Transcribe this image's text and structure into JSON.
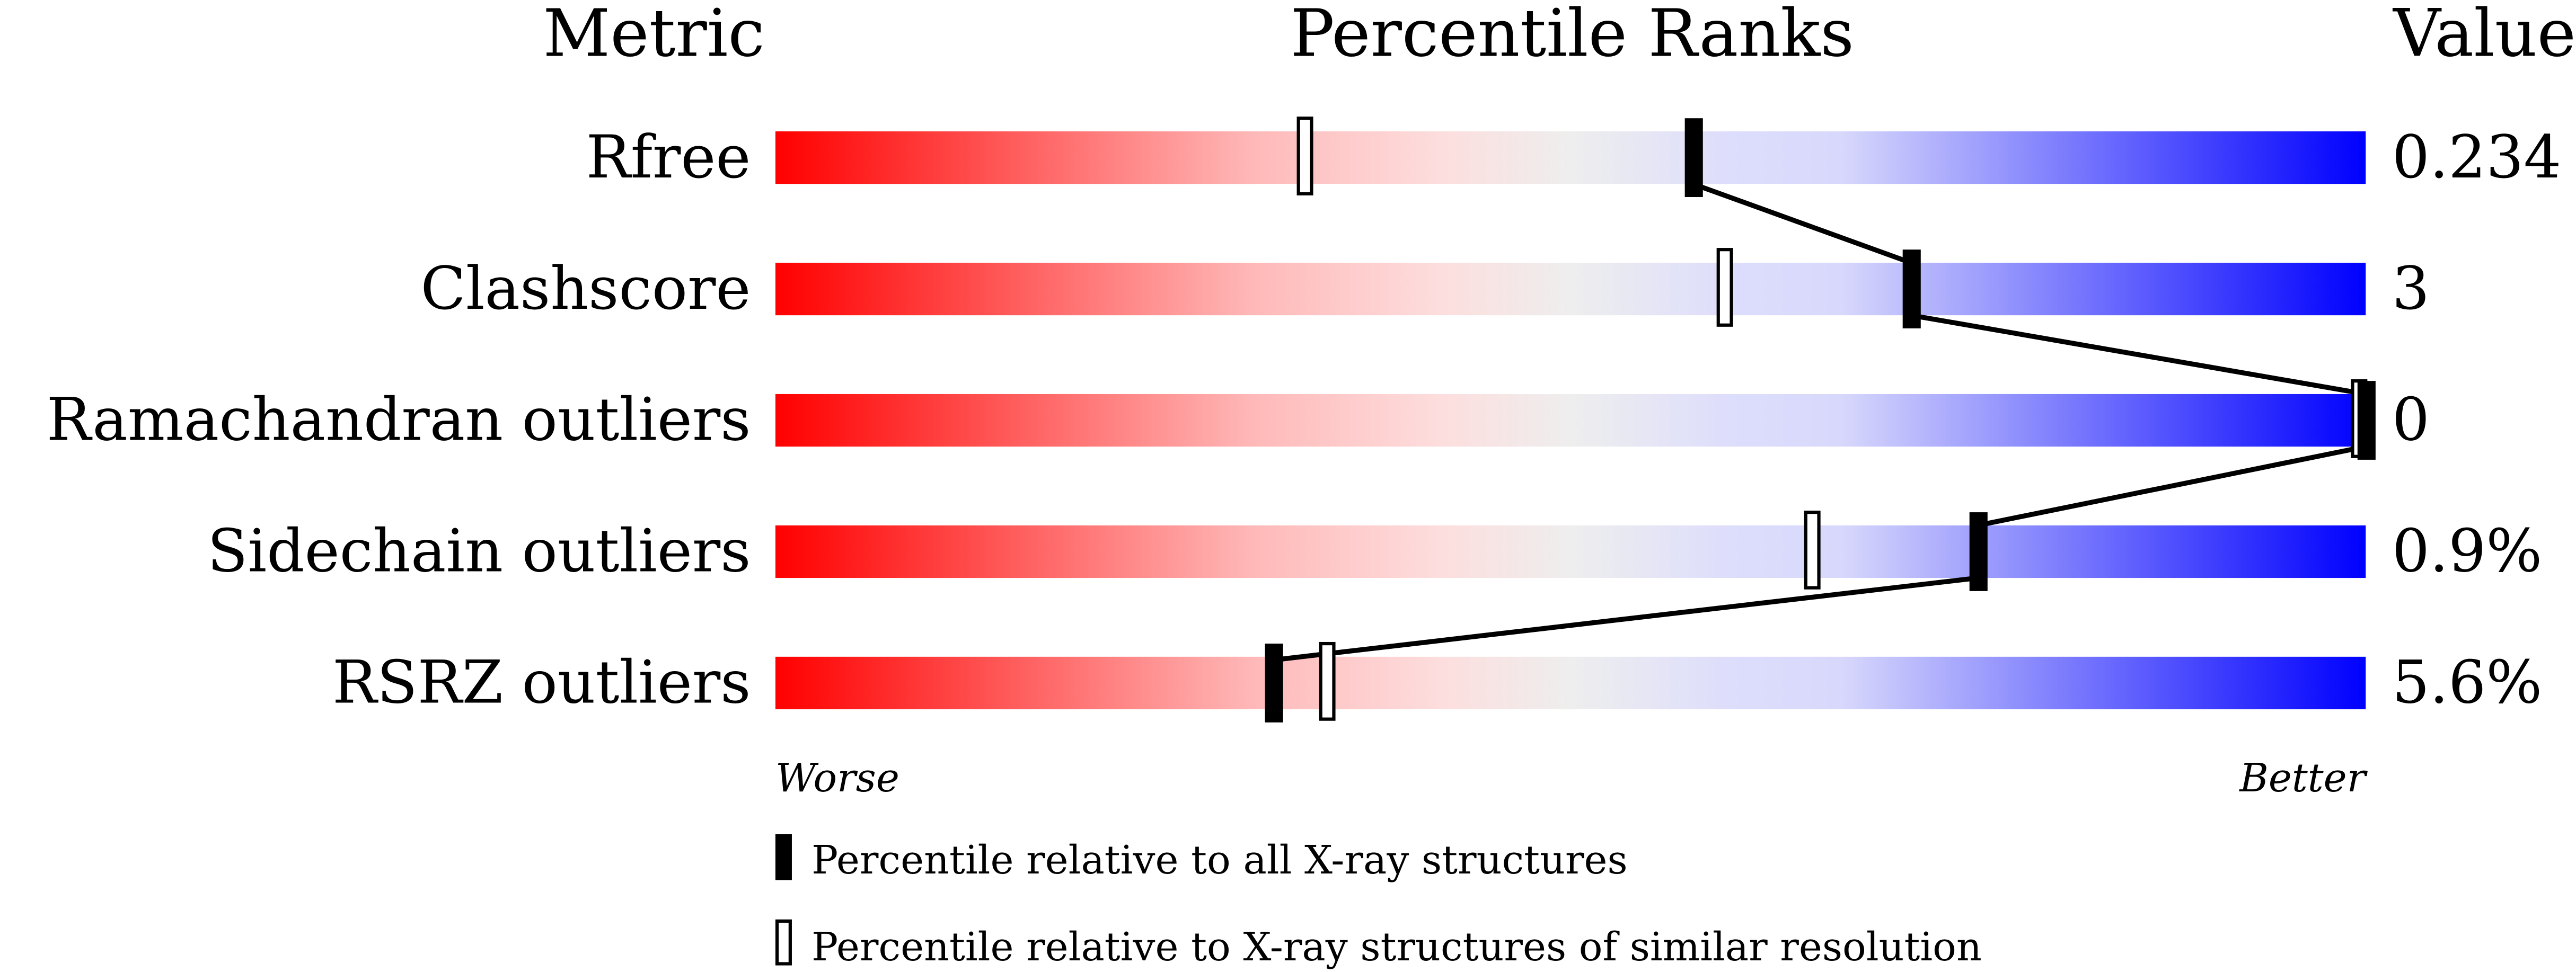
{
  "chart_data": {
    "type": "bar",
    "headers": {
      "metric": "Metric",
      "ranks": "Percentile Ranks",
      "value": "Value"
    },
    "metrics": [
      {
        "label": "Rfree",
        "value": "0.234",
        "percentile_all": 57.7,
        "percentile_similar": 33.3
      },
      {
        "label": "Clashscore",
        "value": "3",
        "percentile_all": 71.4,
        "percentile_similar": 59.7
      },
      {
        "label": "Ramachandran outliers",
        "value": "0",
        "percentile_all": 100,
        "percentile_similar": 100
      },
      {
        "label": "Sidechain outliers",
        "value": "0.9%",
        "percentile_all": 75.6,
        "percentile_similar": 65.2
      },
      {
        "label": "RSRZ outliers",
        "value": "5.6%",
        "percentile_all": 31.3,
        "percentile_similar": 34.7
      }
    ],
    "xlim": [
      0,
      100
    ],
    "axis_left": "Worse",
    "axis_right": "Better",
    "legend": {
      "filled": "Percentile relative to all X-ray structures",
      "open": "Percentile relative to X-ray structures of similar resolution"
    },
    "colors": {
      "worse": "#ff0000",
      "middle": "#eeeeee",
      "better": "#0000ff",
      "marker": "#000000"
    }
  }
}
